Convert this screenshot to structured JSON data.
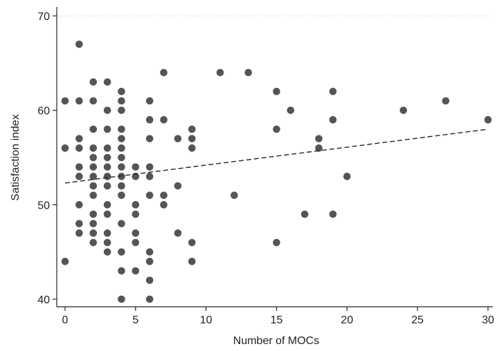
{
  "chart_data": {
    "type": "scatter",
    "title": "",
    "xlabel": "Number of MOCs",
    "ylabel": "Satisfaction index",
    "xlim": [
      0,
      30
    ],
    "ylim": [
      40,
      70
    ],
    "xticks": [
      0,
      5,
      10,
      15,
      20,
      25,
      30
    ],
    "yticks": [
      40,
      50,
      60,
      70
    ],
    "grid": "horizontal dotted line at 70",
    "legend": "none",
    "colors": {
      "points": "#555555",
      "trend": "#222222",
      "axis": "#222222"
    },
    "points": [
      [
        0,
        61
      ],
      [
        0,
        56
      ],
      [
        0,
        44
      ],
      [
        1,
        67
      ],
      [
        1,
        61
      ],
      [
        1,
        57
      ],
      [
        1,
        56
      ],
      [
        1,
        54
      ],
      [
        1,
        53
      ],
      [
        1,
        50
      ],
      [
        1,
        48
      ],
      [
        1,
        47
      ],
      [
        2,
        63
      ],
      [
        2,
        61
      ],
      [
        2,
        58
      ],
      [
        2,
        56
      ],
      [
        2,
        55
      ],
      [
        2,
        54
      ],
      [
        2,
        53
      ],
      [
        2,
        52
      ],
      [
        2,
        51
      ],
      [
        2,
        49
      ],
      [
        2,
        48
      ],
      [
        2,
        47
      ],
      [
        2,
        46
      ],
      [
        3,
        63
      ],
      [
        3,
        60
      ],
      [
        3,
        58
      ],
      [
        3,
        56
      ],
      [
        3,
        55
      ],
      [
        3,
        54
      ],
      [
        3,
        53
      ],
      [
        3,
        52
      ],
      [
        3,
        50
      ],
      [
        3,
        49
      ],
      [
        3,
        47
      ],
      [
        3,
        46
      ],
      [
        3,
        45
      ],
      [
        4,
        62
      ],
      [
        4,
        61
      ],
      [
        4,
        60
      ],
      [
        4,
        58
      ],
      [
        4,
        57
      ],
      [
        4,
        56
      ],
      [
        4,
        55
      ],
      [
        4,
        54
      ],
      [
        4,
        53
      ],
      [
        4,
        52
      ],
      [
        4,
        51
      ],
      [
        4,
        48
      ],
      [
        4,
        45
      ],
      [
        4,
        43
      ],
      [
        4,
        40
      ],
      [
        5,
        54
      ],
      [
        5,
        53
      ],
      [
        5,
        50
      ],
      [
        5,
        49
      ],
      [
        5,
        47
      ],
      [
        5,
        46
      ],
      [
        5,
        43
      ],
      [
        6,
        61
      ],
      [
        6,
        59
      ],
      [
        6,
        57
      ],
      [
        6,
        54
      ],
      [
        6,
        53
      ],
      [
        6,
        51
      ],
      [
        6,
        45
      ],
      [
        6,
        44
      ],
      [
        6,
        42
      ],
      [
        6,
        40
      ],
      [
        7,
        64
      ],
      [
        7,
        59
      ],
      [
        7,
        51
      ],
      [
        7,
        50
      ],
      [
        8,
        57
      ],
      [
        8,
        52
      ],
      [
        8,
        47
      ],
      [
        9,
        58
      ],
      [
        9,
        57
      ],
      [
        9,
        56
      ],
      [
        9,
        46
      ],
      [
        9,
        44
      ],
      [
        11,
        64
      ],
      [
        12,
        51
      ],
      [
        13,
        64
      ],
      [
        15,
        62
      ],
      [
        15,
        58
      ],
      [
        15,
        46
      ],
      [
        16,
        60
      ],
      [
        17,
        49
      ],
      [
        18,
        57
      ],
      [
        18,
        56
      ],
      [
        19,
        62
      ],
      [
        19,
        59
      ],
      [
        19,
        49
      ],
      [
        20,
        53
      ],
      [
        24,
        60
      ],
      [
        27,
        61
      ],
      [
        30,
        59
      ]
    ],
    "trend_line": {
      "style": "dashed",
      "x": [
        0,
        30
      ],
      "y": [
        52.3,
        58
      ]
    }
  }
}
